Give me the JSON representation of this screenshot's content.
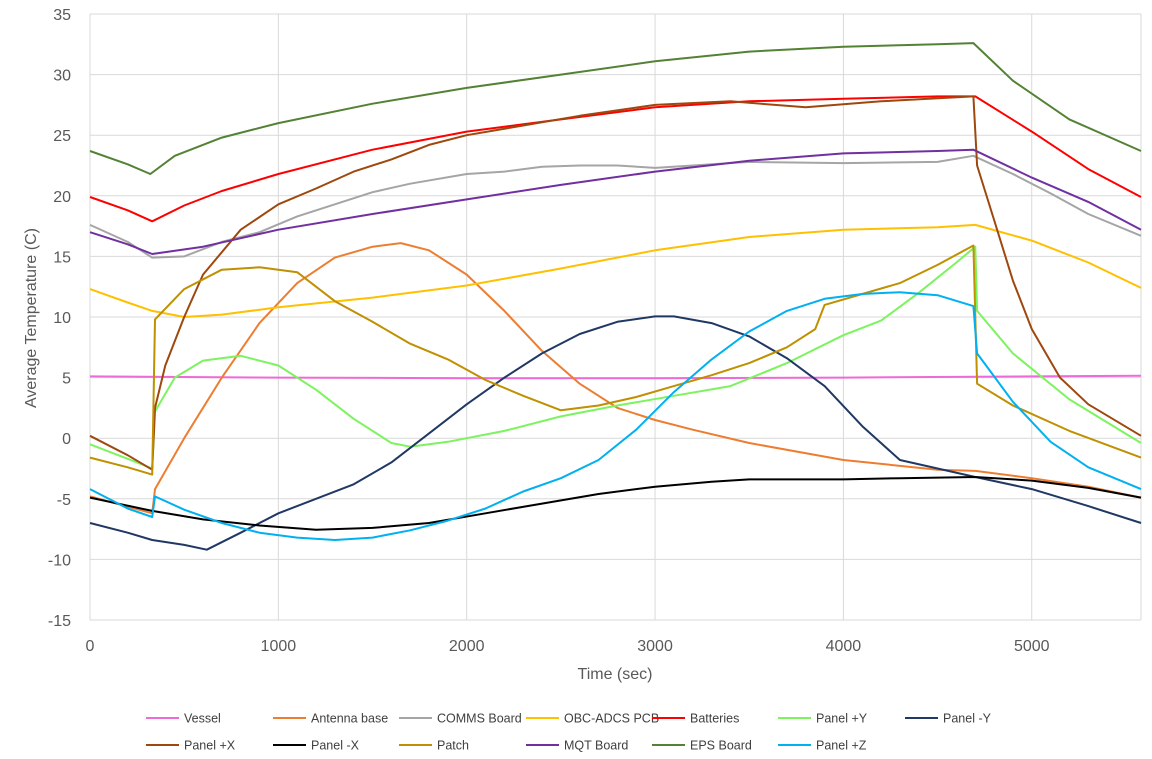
{
  "chart_data": {
    "type": "line",
    "title": "",
    "xlabel": "Time (sec)",
    "ylabel": "Average Temperature (C)",
    "xlim": [
      0,
      5580
    ],
    "ylim": [
      -15,
      35
    ],
    "xticks": [
      "0",
      "1000",
      "2000",
      "3000",
      "4000",
      "5000"
    ],
    "yticks": [
      "35",
      "30",
      "25",
      "20",
      "15",
      "10",
      "5",
      "0",
      "-5",
      "-10",
      "-15"
    ],
    "grid": true,
    "legend_position": "bottom",
    "series": [
      {
        "name": "Vessel",
        "color": "#ee6ad6",
        "points": [
          [
            0,
            5.1
          ],
          [
            1000,
            5.0
          ],
          [
            2000,
            4.95
          ],
          [
            3000,
            4.95
          ],
          [
            4000,
            5.0
          ],
          [
            5000,
            5.1
          ],
          [
            5580,
            5.15
          ]
        ]
      },
      {
        "name": "Antenna base",
        "color": "#ed7d31",
        "points": [
          [
            0,
            -4.8
          ],
          [
            330,
            -6.2
          ],
          [
            345,
            -4.2
          ],
          [
            500,
            0
          ],
          [
            700,
            5
          ],
          [
            900,
            9.5
          ],
          [
            1100,
            12.8
          ],
          [
            1300,
            14.9
          ],
          [
            1500,
            15.8
          ],
          [
            1650,
            16.1
          ],
          [
            1800,
            15.5
          ],
          [
            2000,
            13.5
          ],
          [
            2200,
            10.5
          ],
          [
            2400,
            7.2
          ],
          [
            2600,
            4.5
          ],
          [
            2800,
            2.5
          ],
          [
            3000,
            1.5
          ],
          [
            3200,
            0.7
          ],
          [
            3500,
            -0.4
          ],
          [
            4000,
            -1.8
          ],
          [
            4500,
            -2.6
          ],
          [
            4700,
            -2.7
          ],
          [
            5000,
            -3.3
          ],
          [
            5300,
            -4.0
          ],
          [
            5580,
            -4.9
          ]
        ]
      },
      {
        "name": "COMMS Board",
        "color": "#a5a5a5",
        "points": [
          [
            0,
            17.6
          ],
          [
            200,
            16.2
          ],
          [
            330,
            14.9
          ],
          [
            500,
            15
          ],
          [
            700,
            16.2
          ],
          [
            900,
            17
          ],
          [
            1100,
            18.3
          ],
          [
            1300,
            19.3
          ],
          [
            1500,
            20.3
          ],
          [
            1700,
            21
          ],
          [
            2000,
            21.8
          ],
          [
            2200,
            22
          ],
          [
            2400,
            22.4
          ],
          [
            2600,
            22.5
          ],
          [
            2800,
            22.5
          ],
          [
            3000,
            22.3
          ],
          [
            3200,
            22.5
          ],
          [
            3500,
            22.8
          ],
          [
            4000,
            22.7
          ],
          [
            4500,
            22.8
          ],
          [
            4690,
            23.3
          ],
          [
            4900,
            21.8
          ],
          [
            5100,
            20.2
          ],
          [
            5300,
            18.5
          ],
          [
            5580,
            16.7
          ]
        ]
      },
      {
        "name": "OBC-ADCS PCB",
        "color": "#ffc000",
        "points": [
          [
            0,
            12.3
          ],
          [
            200,
            11.2
          ],
          [
            330,
            10.5
          ],
          [
            500,
            10.0
          ],
          [
            700,
            10.2
          ],
          [
            1000,
            10.8
          ],
          [
            1500,
            11.6
          ],
          [
            2000,
            12.6
          ],
          [
            2500,
            14
          ],
          [
            3000,
            15.5
          ],
          [
            3500,
            16.6
          ],
          [
            4000,
            17.2
          ],
          [
            4500,
            17.4
          ],
          [
            4700,
            17.6
          ],
          [
            5000,
            16.3
          ],
          [
            5300,
            14.5
          ],
          [
            5580,
            12.4
          ]
        ]
      },
      {
        "name": "Batteries",
        "color": "#ff0000",
        "points": [
          [
            0,
            19.9
          ],
          [
            200,
            18.8
          ],
          [
            330,
            17.9
          ],
          [
            500,
            19.2
          ],
          [
            700,
            20.4
          ],
          [
            1000,
            21.8
          ],
          [
            1500,
            23.8
          ],
          [
            2000,
            25.3
          ],
          [
            2500,
            26.3
          ],
          [
            3000,
            27.3
          ],
          [
            3500,
            27.8
          ],
          [
            4000,
            28
          ],
          [
            4500,
            28.2
          ],
          [
            4700,
            28.2
          ],
          [
            5000,
            25.3
          ],
          [
            5300,
            22.2
          ],
          [
            5580,
            19.9
          ]
        ]
      },
      {
        "name": "Panel +Y",
        "color": "#7cf35f",
        "points": [
          [
            0,
            -0.5
          ],
          [
            200,
            -1.7
          ],
          [
            330,
            -2.5
          ],
          [
            345,
            2.2
          ],
          [
            450,
            5
          ],
          [
            600,
            6.4
          ],
          [
            800,
            6.8
          ],
          [
            1000,
            6
          ],
          [
            1200,
            4
          ],
          [
            1400,
            1.6
          ],
          [
            1600,
            -0.4
          ],
          [
            1700,
            -0.7
          ],
          [
            1900,
            -0.3
          ],
          [
            2200,
            0.6
          ],
          [
            2500,
            1.8
          ],
          [
            2800,
            2.7
          ],
          [
            3100,
            3.5
          ],
          [
            3400,
            4.3
          ],
          [
            3700,
            6.2
          ],
          [
            4000,
            8.5
          ],
          [
            4200,
            9.7
          ],
          [
            4400,
            12
          ],
          [
            4600,
            14.5
          ],
          [
            4700,
            15.8
          ],
          [
            4710,
            10.5
          ],
          [
            4900,
            7
          ],
          [
            5200,
            3.2
          ],
          [
            5580,
            -0.4
          ]
        ]
      },
      {
        "name": "Panel -Y",
        "color": "#203864",
        "points": [
          [
            0,
            -7
          ],
          [
            200,
            -7.8
          ],
          [
            330,
            -8.4
          ],
          [
            500,
            -8.8
          ],
          [
            620,
            -9.2
          ],
          [
            800,
            -7.8
          ],
          [
            1000,
            -6.2
          ],
          [
            1200,
            -5
          ],
          [
            1400,
            -3.8
          ],
          [
            1600,
            -2
          ],
          [
            1800,
            0.4
          ],
          [
            2000,
            2.8
          ],
          [
            2200,
            5
          ],
          [
            2400,
            7
          ],
          [
            2600,
            8.6
          ],
          [
            2800,
            9.6
          ],
          [
            3000,
            10.05
          ],
          [
            3100,
            10.05
          ],
          [
            3300,
            9.5
          ],
          [
            3500,
            8.4
          ],
          [
            3700,
            6.6
          ],
          [
            3900,
            4.3
          ],
          [
            4100,
            1
          ],
          [
            4300,
            -1.8
          ],
          [
            4500,
            -2.5
          ],
          [
            4700,
            -3.2
          ],
          [
            5000,
            -4.2
          ],
          [
            5300,
            -5.6
          ],
          [
            5580,
            -7.0
          ]
        ]
      },
      {
        "name": "Panel +X",
        "color": "#9e480e",
        "points": [
          [
            0,
            0.2
          ],
          [
            200,
            -1.4
          ],
          [
            330,
            -2.6
          ],
          [
            345,
            2.5
          ],
          [
            400,
            6
          ],
          [
            500,
            10
          ],
          [
            600,
            13.5
          ],
          [
            800,
            17.2
          ],
          [
            1000,
            19.3
          ],
          [
            1200,
            20.6
          ],
          [
            1400,
            22
          ],
          [
            1600,
            23
          ],
          [
            1800,
            24.2
          ],
          [
            2000,
            25
          ],
          [
            2300,
            25.8
          ],
          [
            2600,
            26.6
          ],
          [
            3000,
            27.5
          ],
          [
            3400,
            27.8
          ],
          [
            3800,
            27.3
          ],
          [
            4200,
            27.8
          ],
          [
            4690,
            28.2
          ],
          [
            4710,
            22.5
          ],
          [
            4800,
            18
          ],
          [
            4900,
            13
          ],
          [
            5000,
            9
          ],
          [
            5150,
            5
          ],
          [
            5300,
            2.8
          ],
          [
            5580,
            0.2
          ]
        ]
      },
      {
        "name": "Panel -X",
        "color": "#000000",
        "points": [
          [
            0,
            -4.9
          ],
          [
            330,
            -6
          ],
          [
            600,
            -6.7
          ],
          [
            900,
            -7.2
          ],
          [
            1200,
            -7.55
          ],
          [
            1500,
            -7.4
          ],
          [
            1800,
            -7
          ],
          [
            2100,
            -6.2
          ],
          [
            2400,
            -5.4
          ],
          [
            2700,
            -4.6
          ],
          [
            3000,
            -4
          ],
          [
            3300,
            -3.6
          ],
          [
            3500,
            -3.4
          ],
          [
            4000,
            -3.4
          ],
          [
            4300,
            -3.3
          ],
          [
            4700,
            -3.2
          ],
          [
            5000,
            -3.5
          ],
          [
            5300,
            -4.1
          ],
          [
            5580,
            -4.9
          ]
        ]
      },
      {
        "name": "Patch",
        "color": "#bf9000",
        "points": [
          [
            0,
            -1.6
          ],
          [
            200,
            -2.4
          ],
          [
            330,
            -3
          ],
          [
            345,
            9.8
          ],
          [
            500,
            12.3
          ],
          [
            700,
            13.9
          ],
          [
            900,
            14.1
          ],
          [
            1100,
            13.7
          ],
          [
            1300,
            11.3
          ],
          [
            1500,
            9.6
          ],
          [
            1700,
            7.8
          ],
          [
            1900,
            6.5
          ],
          [
            2100,
            4.8
          ],
          [
            2300,
            3.5
          ],
          [
            2500,
            2.3
          ],
          [
            2700,
            2.7
          ],
          [
            2900,
            3.4
          ],
          [
            3100,
            4.3
          ],
          [
            3300,
            5.2
          ],
          [
            3500,
            6.2
          ],
          [
            3700,
            7.5
          ],
          [
            3850,
            9
          ],
          [
            3900,
            11
          ],
          [
            4100,
            11.9
          ],
          [
            4300,
            12.8
          ],
          [
            4500,
            14.3
          ],
          [
            4690,
            15.9
          ],
          [
            4710,
            4.5
          ],
          [
            4900,
            2.7
          ],
          [
            5200,
            0.6
          ],
          [
            5580,
            -1.6
          ]
        ]
      },
      {
        "name": "MQT Board",
        "color": "#7030a0",
        "points": [
          [
            0,
            17
          ],
          [
            200,
            16
          ],
          [
            330,
            15.2
          ],
          [
            600,
            15.8
          ],
          [
            1000,
            17.2
          ],
          [
            1500,
            18.5
          ],
          [
            2000,
            19.7
          ],
          [
            2500,
            20.9
          ],
          [
            3000,
            22
          ],
          [
            3500,
            22.9
          ],
          [
            4000,
            23.5
          ],
          [
            4500,
            23.7
          ],
          [
            4690,
            23.8
          ],
          [
            5000,
            21.5
          ],
          [
            5300,
            19.5
          ],
          [
            5580,
            17.2
          ]
        ]
      },
      {
        "name": "EPS Board",
        "color": "#548235",
        "points": [
          [
            0,
            23.7
          ],
          [
            200,
            22.6
          ],
          [
            320,
            21.8
          ],
          [
            450,
            23.3
          ],
          [
            700,
            24.8
          ],
          [
            1000,
            26
          ],
          [
            1500,
            27.6
          ],
          [
            2000,
            28.9
          ],
          [
            2500,
            30
          ],
          [
            3000,
            31.1
          ],
          [
            3500,
            31.9
          ],
          [
            4000,
            32.3
          ],
          [
            4500,
            32.5
          ],
          [
            4690,
            32.6
          ],
          [
            4900,
            29.5
          ],
          [
            5200,
            26.3
          ],
          [
            5580,
            23.7
          ]
        ]
      },
      {
        "name": "Panel +Z",
        "color": "#00b0f0",
        "points": [
          [
            0,
            -4.2
          ],
          [
            200,
            -5.8
          ],
          [
            330,
            -6.5
          ],
          [
            345,
            -4.8
          ],
          [
            500,
            -5.9
          ],
          [
            700,
            -7
          ],
          [
            900,
            -7.8
          ],
          [
            1100,
            -8.2
          ],
          [
            1300,
            -8.4
          ],
          [
            1500,
            -8.2
          ],
          [
            1700,
            -7.6
          ],
          [
            1900,
            -6.8
          ],
          [
            2100,
            -5.8
          ],
          [
            2300,
            -4.4
          ],
          [
            2500,
            -3.3
          ],
          [
            2700,
            -1.8
          ],
          [
            2900,
            0.7
          ],
          [
            3100,
            3.8
          ],
          [
            3300,
            6.5
          ],
          [
            3500,
            8.8
          ],
          [
            3700,
            10.5
          ],
          [
            3900,
            11.5
          ],
          [
            4100,
            11.9
          ],
          [
            4300,
            12.05
          ],
          [
            4500,
            11.8
          ],
          [
            4690,
            10.9
          ],
          [
            4710,
            7
          ],
          [
            4900,
            3
          ],
          [
            5100,
            -0.3
          ],
          [
            5300,
            -2.4
          ],
          [
            5580,
            -4.2
          ]
        ]
      }
    ]
  }
}
